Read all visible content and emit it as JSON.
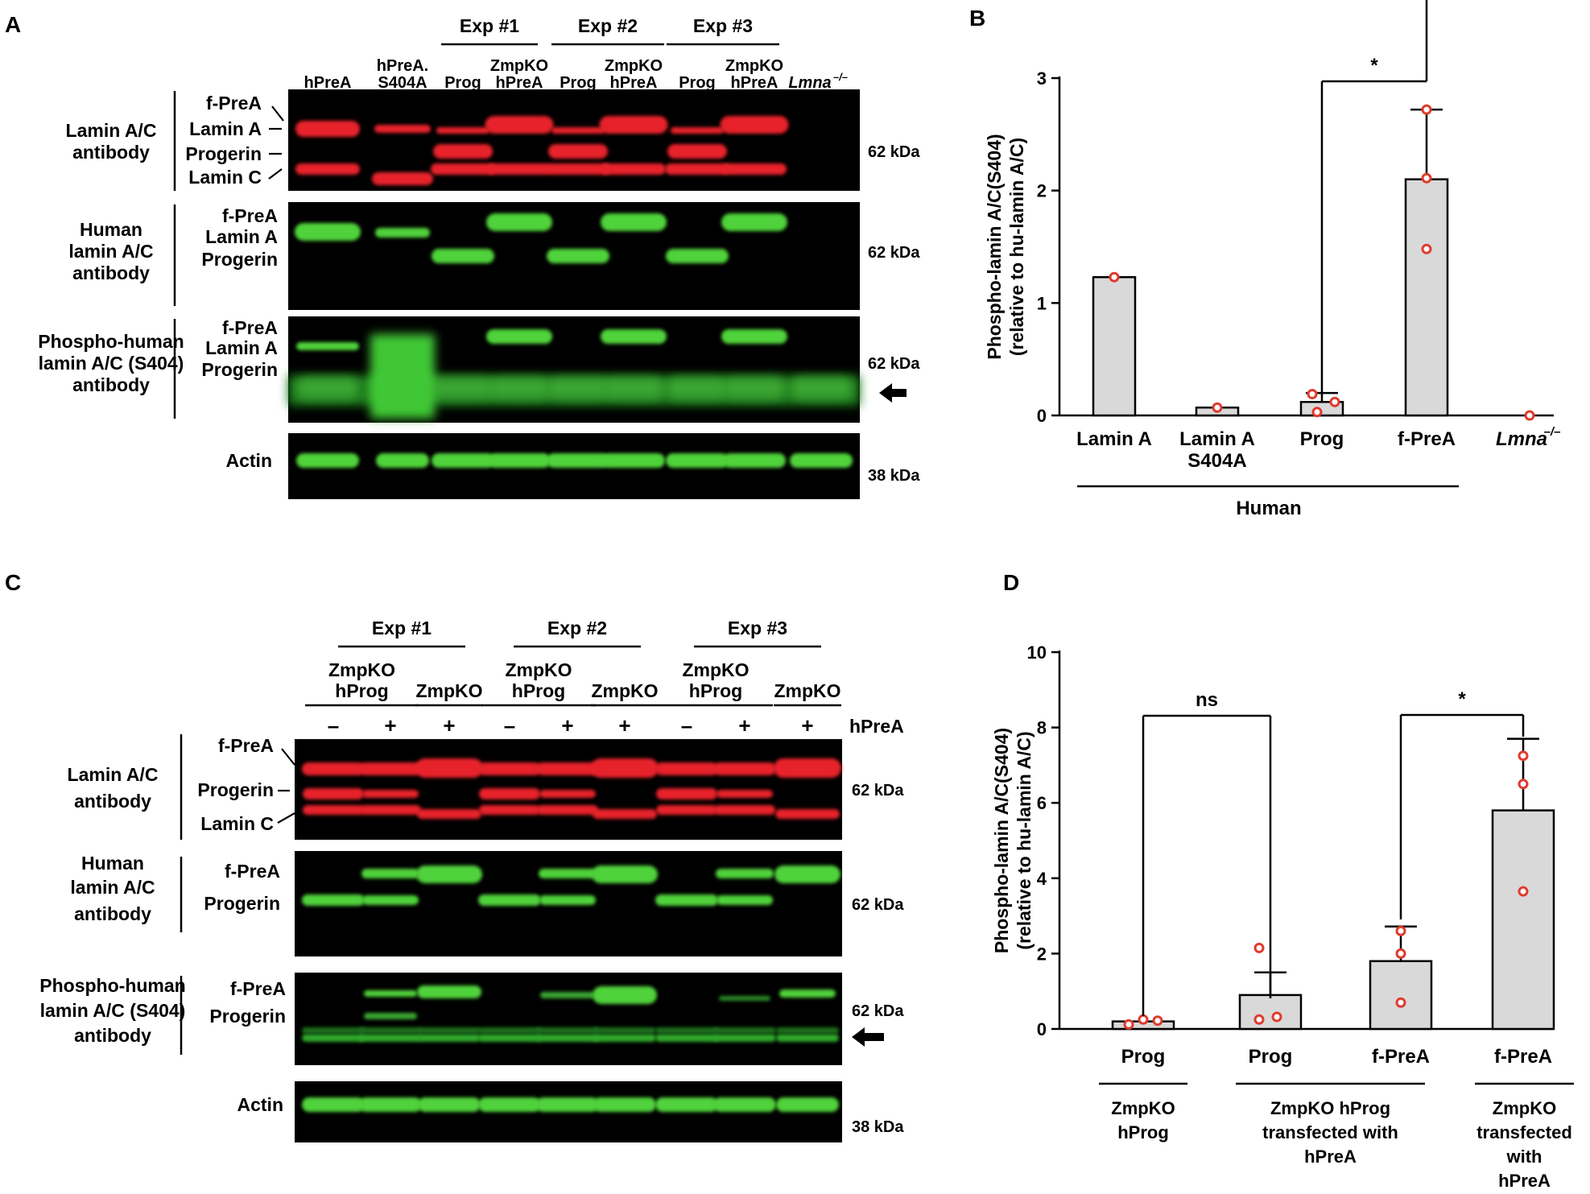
{
  "panels": {
    "a": "A",
    "b": "B",
    "c": "C",
    "d": "D"
  },
  "colors": {
    "red_band": "#e8242a",
    "green_band": "#4fd23a",
    "bar_fill": "#d9d9d9",
    "dot": "#e03a2e",
    "blot_bg": "#000000"
  },
  "panel_a": {
    "experiments": [
      "Exp #1",
      "Exp #2",
      "Exp #3"
    ],
    "lanes": [
      {
        "top": "",
        "bottom": "hPreA"
      },
      {
        "top": "hPreA.",
        "bottom": "S404A"
      },
      {
        "top": "",
        "bottom": "Prog"
      },
      {
        "top": "ZmpKO",
        "bottom": "hPreA"
      },
      {
        "top": "",
        "bottom": "Prog"
      },
      {
        "top": "ZmpKO",
        "bottom": "hPreA"
      },
      {
        "top": "",
        "bottom": "Prog"
      },
      {
        "top": "ZmpKO",
        "bottom": "hPreA"
      },
      {
        "top": "",
        "bottom": "Lmna",
        "sup": "–/–"
      }
    ],
    "blots": [
      {
        "antibody": [
          "Lamin A/C",
          "antibody"
        ],
        "bands": [
          "f-PreA",
          "Lamin A",
          "Progerin",
          "Lamin C"
        ],
        "size": "62 kDa"
      },
      {
        "antibody": [
          "Human",
          "lamin A/C",
          "antibody"
        ],
        "bands": [
          "f-PreA",
          "Lamin A",
          "Progerin"
        ],
        "size": "62 kDa"
      },
      {
        "antibody": [
          "Phospho-human",
          "lamin A/C (S404)",
          "antibody"
        ],
        "bands": [
          "f-PreA",
          "Lamin A",
          "Progerin"
        ],
        "size": "62 kDa"
      },
      {
        "antibody": [],
        "bands": [
          "Actin"
        ],
        "size": "38 kDa"
      }
    ]
  },
  "panel_c": {
    "experiments": [
      "Exp #1",
      "Exp #2",
      "Exp #3"
    ],
    "groups": [
      [
        "ZmpKO",
        "hProg"
      ],
      [
        "ZmpKO"
      ],
      [
        "ZmpKO",
        "hProg"
      ],
      [
        "ZmpKO"
      ],
      [
        "ZmpKO",
        "hProg"
      ],
      [
        "ZmpKO"
      ]
    ],
    "signs": [
      "–",
      "+",
      "+",
      "–",
      "+",
      "+",
      "–",
      "+",
      "+"
    ],
    "sign_label": "hPreA",
    "blots": [
      {
        "antibody": [
          "Lamin A/C",
          "antibody"
        ],
        "bands": [
          "f-PreA",
          "Progerin",
          "Lamin C"
        ],
        "size": "62 kDa"
      },
      {
        "antibody": [
          "Human",
          "lamin A/C",
          "antibody"
        ],
        "bands": [
          "f-PreA",
          "Progerin"
        ],
        "size": "62 kDa"
      },
      {
        "antibody": [
          "Phospho-human",
          "lamin A/C (S404)",
          "antibody"
        ],
        "bands": [
          "f-PreA",
          "Progerin"
        ],
        "size": "62 kDa"
      },
      {
        "antibody": [],
        "bands": [
          "Actin"
        ],
        "size": "38 kDa"
      }
    ]
  },
  "chart_data": [
    {
      "panel": "B",
      "type": "bar",
      "ylabel": [
        "Phospho-lamin A/C(S404)",
        "(relative to hu-lamin A/C)"
      ],
      "ylim": [
        0,
        3
      ],
      "yticks": [
        "0",
        "1",
        "2",
        "3"
      ],
      "categories": [
        "Lamin A",
        "Lamin A S404A",
        "Prog",
        "f-PreA",
        "Lmna–/–"
      ],
      "category_lines": [
        [
          "Lamin A"
        ],
        [
          "Lamin A",
          "S404A"
        ],
        [
          "Prog"
        ],
        [
          "f-PreA"
        ],
        [
          "Lmna",
          "–/–"
        ]
      ],
      "values": [
        1.23,
        0.07,
        0.12,
        2.1,
        0
      ],
      "error_upper": [
        null,
        null,
        0.2,
        2.72,
        null
      ],
      "points": [
        [
          1.23
        ],
        [
          0.07
        ],
        [
          0.19,
          0.12,
          0.03
        ],
        [
          2.72,
          2.11,
          1.48
        ],
        [
          0
        ]
      ],
      "group_label": "Human",
      "significance": [
        {
          "from": 2,
          "to": 3,
          "label": "*"
        }
      ]
    },
    {
      "panel": "D",
      "type": "bar",
      "ylabel": [
        "Phospho-lamin A/C(S404)",
        "(relative to hu-lamin A/C)"
      ],
      "ylim": [
        0,
        10
      ],
      "yticks": [
        "0",
        "2",
        "4",
        "6",
        "8",
        "10"
      ],
      "categories": [
        "Prog",
        "Prog",
        "f-PreA",
        "f-PreA"
      ],
      "values": [
        0.2,
        0.9,
        1.8,
        5.8
      ],
      "error_upper": [
        null,
        1.5,
        2.72,
        7.7
      ],
      "points": [
        [
          0.12,
          0.25,
          0.22
        ],
        [
          2.15,
          0.25,
          0.32
        ],
        [
          2.6,
          2.0,
          0.7
        ],
        [
          7.25,
          6.5,
          3.65
        ]
      ],
      "groups": [
        {
          "from": 0,
          "to": 0,
          "lines": [
            "ZmpKO",
            "hProg"
          ]
        },
        {
          "from": 1,
          "to": 2,
          "lines": [
            "ZmpKO hProg",
            "transfected with",
            "hPreA"
          ]
        },
        {
          "from": 3,
          "to": 3,
          "lines": [
            "ZmpKO",
            "transfected",
            "with",
            "hPreA"
          ]
        }
      ],
      "significance": [
        {
          "from": 0,
          "to": 1,
          "label": "ns"
        },
        {
          "from": 2,
          "to": 3,
          "label": "*"
        }
      ]
    }
  ]
}
